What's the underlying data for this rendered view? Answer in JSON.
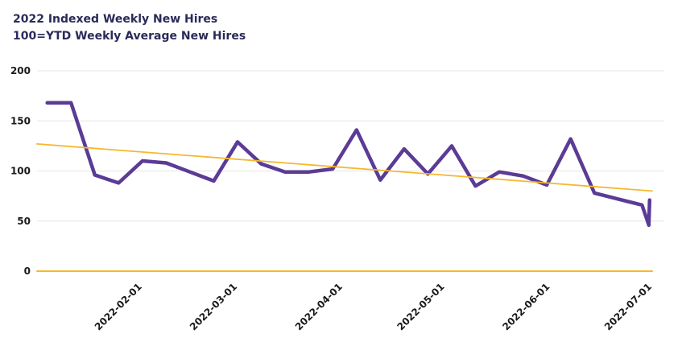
{
  "chart_data": {
    "type": "line",
    "title": "2022 Indexed Weekly New Hires",
    "subtitle": "100=YTD Weekly Average New Hires",
    "xlabel": "",
    "ylabel": "",
    "ylim": [
      0,
      200
    ],
    "y_ticks": [
      "200",
      "150",
      "100",
      "50",
      "0"
    ],
    "x_tick_labels": [
      "2022-02-01",
      "2022-03-01",
      "2022-04-01",
      "2022-05-01",
      "2022-06-01",
      "2022-07-01"
    ],
    "x_range": [
      "2022-01-01",
      "2022-07-01"
    ],
    "grid": "horizontal",
    "series": [
      {
        "color": "#5b3b96",
        "x": [
          "2022-01-04",
          "2022-01-11",
          "2022-01-18",
          "2022-01-25",
          "2022-02-01",
          "2022-02-08",
          "2022-02-15",
          "2022-02-22",
          "2022-03-01",
          "2022-03-08",
          "2022-03-15",
          "2022-03-22",
          "2022-03-29",
          "2022-04-05",
          "2022-04-12",
          "2022-04-19",
          "2022-04-26",
          "2022-05-03",
          "2022-05-10",
          "2022-05-17",
          "2022-05-24",
          "2022-05-31",
          "2022-06-07",
          "2022-06-14",
          "2022-06-21",
          "2022-06-28",
          "2022-06-30"
        ],
        "values": [
          168,
          168,
          96,
          88,
          110,
          108,
          99,
          90,
          129,
          107,
          99,
          99,
          102,
          141,
          91,
          122,
          97,
          125,
          85,
          99,
          95,
          86,
          132,
          78,
          72,
          66,
          46
        ]
      },
      {
        "color": "#f5b82e",
        "x": [
          "2022-01-01",
          "2022-07-01"
        ],
        "values": [
          127,
          80
        ],
        "trendline": true
      },
      {
        "color": "#f5b82e",
        "x": [
          "2022-01-01",
          "2022-07-01"
        ],
        "values": [
          0,
          0
        ],
        "baseline": true
      }
    ]
  }
}
